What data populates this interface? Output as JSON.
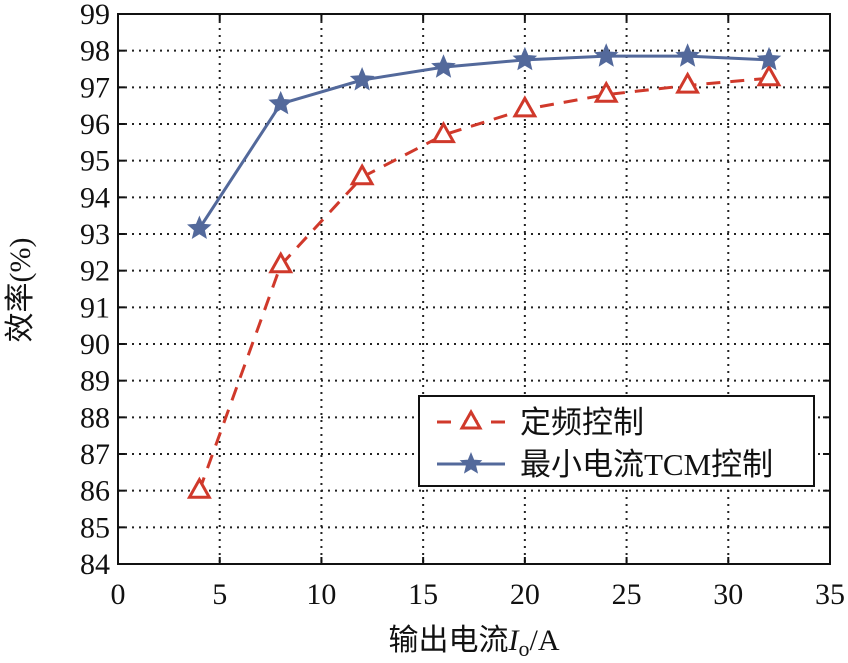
{
  "chart_data": {
    "type": "line",
    "title": "",
    "xlabel": "输出电流I_o/A",
    "xlabel_main": "输出电流",
    "xlabel_var": "I",
    "xlabel_sub": "o",
    "xlabel_unit": "/A",
    "ylabel": "效率(%)",
    "xlim": [
      0,
      35
    ],
    "ylim": [
      84,
      99
    ],
    "xticks": [
      0,
      5,
      10,
      15,
      20,
      25,
      30,
      35
    ],
    "yticks": [
      84,
      85,
      86,
      87,
      88,
      89,
      90,
      91,
      92,
      93,
      94,
      95,
      96,
      97,
      98,
      99
    ],
    "grid": true,
    "legend_position": "lower right",
    "x": [
      4,
      8,
      12,
      16,
      20,
      24,
      28,
      32
    ],
    "series": [
      {
        "name": "定频控制",
        "color": "#d0392b",
        "line": "dashed",
        "marker": "triangle",
        "values": [
          86.0,
          92.15,
          94.55,
          95.7,
          96.4,
          96.8,
          97.05,
          97.25
        ]
      },
      {
        "name": "最小电流TCM控制",
        "color": "#53699b",
        "line": "solid",
        "marker": "star",
        "values": [
          93.15,
          96.55,
          97.2,
          97.55,
          97.75,
          97.85,
          97.85,
          97.75
        ]
      }
    ]
  }
}
